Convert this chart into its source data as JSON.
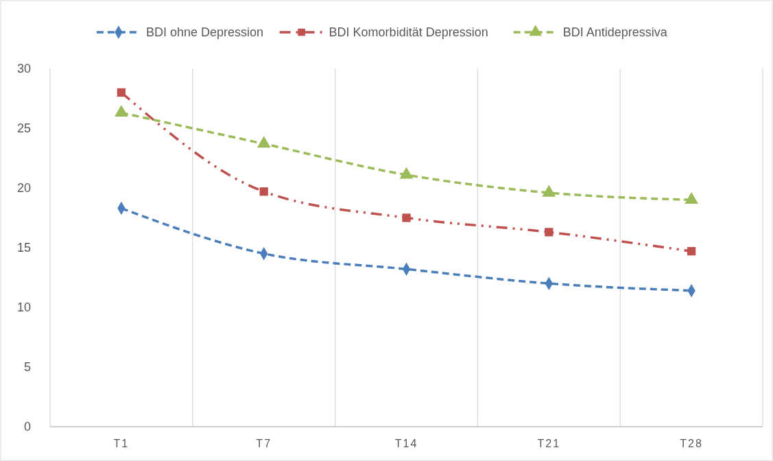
{
  "chart_data": {
    "type": "line",
    "categories": [
      "T1",
      "T7",
      "T14",
      "T21",
      "T28"
    ],
    "series": [
      {
        "name": "BDI ohne Depression",
        "color": "#4a7ebb",
        "values": [
          18.3,
          14.5,
          13.2,
          12.0,
          11.4
        ],
        "marker": "diamond",
        "line_style": "dashed"
      },
      {
        "name": "BDI Komorbidität Depression",
        "color": "#c0504d",
        "values": [
          28.0,
          19.7,
          17.5,
          16.3,
          14.7
        ],
        "marker": "square",
        "line_style": "dashed"
      },
      {
        "name": "BDI Antidepressiva",
        "color": "#9bbb59",
        "values": [
          26.3,
          23.7,
          21.1,
          19.6,
          19.0
        ],
        "marker": "triangle",
        "line_style": "dashed"
      }
    ],
    "ylim": [
      0,
      30
    ],
    "yticks": [
      0,
      5,
      10,
      15,
      20,
      25,
      30
    ],
    "grid": "x",
    "legend": "top"
  }
}
